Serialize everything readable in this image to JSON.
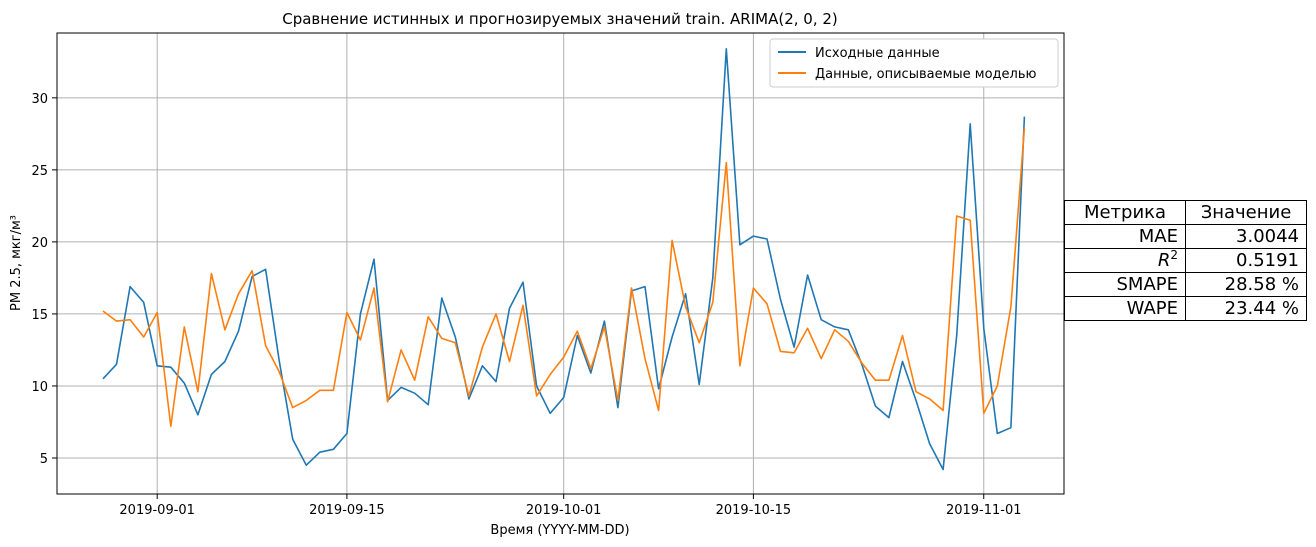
{
  "chart_data": {
    "type": "line",
    "title": "Сравнение истинных и прогнозируемых значений train. ARIMA(2, 0, 2)",
    "xlabel": "Время (YYYY-MM-DD)",
    "ylabel": "PM 2.5, мкг/м³",
    "x_start": "2019-08-28",
    "x_ticks": [
      "2019-09-01",
      "2019-09-15",
      "2019-10-01",
      "2019-10-15",
      "2019-11-01"
    ],
    "y_ticks": [
      5,
      10,
      15,
      20,
      25,
      30
    ],
    "ylim": [
      2.5,
      34.5
    ],
    "grid": true,
    "legend_position": "top-right",
    "series": [
      {
        "name": "Исходные данные",
        "color": "#1f77b4",
        "values": [
          10.5,
          11.5,
          16.9,
          15.8,
          11.4,
          11.3,
          10.2,
          8.0,
          10.8,
          11.7,
          13.8,
          17.6,
          18.1,
          11.8,
          6.3,
          4.5,
          5.4,
          5.6,
          6.7,
          15.0,
          18.8,
          9.0,
          9.9,
          9.5,
          8.7,
          16.1,
          13.4,
          9.1,
          11.4,
          10.3,
          15.4,
          17.2,
          10.0,
          8.1,
          9.2,
          13.5,
          10.9,
          14.5,
          8.5,
          16.6,
          16.9,
          9.8,
          13.4,
          16.4,
          10.1,
          17.5,
          33.4,
          19.8,
          20.4,
          20.2,
          16.0,
          12.7,
          17.7,
          14.6,
          14.1,
          13.9,
          11.5,
          8.6,
          7.8,
          11.7,
          9.0,
          6.0,
          4.2,
          13.5,
          28.2,
          14.0,
          6.7,
          7.1,
          28.7
        ]
      },
      {
        "name": "Данные, описываемые моделью",
        "color": "#ff7f0e",
        "values": [
          15.2,
          14.5,
          14.6,
          13.4,
          15.1,
          7.2,
          14.1,
          9.6,
          17.8,
          13.9,
          16.4,
          18.0,
          12.8,
          11.0,
          8.5,
          9.0,
          9.7,
          9.7,
          15.1,
          13.2,
          16.8,
          8.9,
          12.5,
          10.4,
          14.8,
          13.3,
          13.0,
          9.3,
          12.7,
          15.0,
          11.7,
          15.6,
          9.3,
          10.8,
          12.0,
          13.8,
          11.2,
          14.1,
          9.0,
          16.8,
          11.9,
          8.3,
          20.1,
          15.5,
          13.0,
          15.8,
          25.5,
          11.4,
          16.8,
          15.7,
          12.4,
          12.3,
          14.0,
          11.9,
          13.9,
          13.1,
          11.6,
          10.4,
          10.4,
          13.5,
          9.6,
          9.1,
          8.3,
          21.8,
          21.5,
          8.1,
          10.0,
          15.5,
          27.9
        ]
      }
    ]
  },
  "metrics_table": {
    "headers": [
      "Метрика",
      "Значение"
    ],
    "rows": [
      {
        "metric": "MAE",
        "value": "3.0044"
      },
      {
        "metric": "R",
        "sup": "2",
        "value": "0.5191"
      },
      {
        "metric": "SMAPE",
        "value": "28.58 %"
      },
      {
        "metric": "WAPE",
        "value": "23.44 %"
      }
    ]
  }
}
